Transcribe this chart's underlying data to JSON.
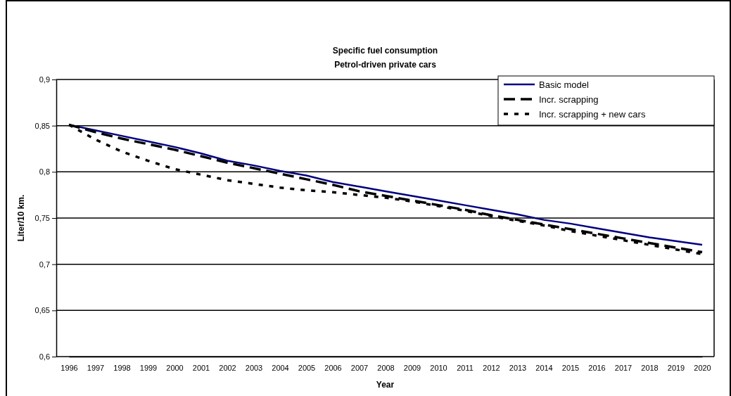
{
  "chart_data": {
    "type": "line",
    "title": "Specific fuel consumption",
    "subtitle": "Petrol-driven private cars",
    "xlabel": "Year",
    "ylabel": "Liter/10 km.",
    "categories": [
      "1996",
      "1997",
      "1998",
      "1999",
      "2000",
      "2001",
      "2002",
      "2003",
      "2004",
      "2005",
      "2006",
      "2007",
      "2008",
      "2009",
      "2010",
      "2011",
      "2012",
      "2013",
      "2014",
      "2015",
      "2016",
      "2017",
      "2018",
      "2019",
      "2020"
    ],
    "series": [
      {
        "name": "Basic model",
        "color": "#000080",
        "line_style": "solid",
        "values": [
          0.851,
          0.845,
          0.839,
          0.833,
          0.827,
          0.82,
          0.812,
          0.807,
          0.801,
          0.796,
          0.789,
          0.784,
          0.779,
          0.774,
          0.769,
          0.764,
          0.759,
          0.754,
          0.748,
          0.744,
          0.739,
          0.734,
          0.729,
          0.725,
          0.721
        ]
      },
      {
        "name": "Incr. scrapping",
        "color": "#000000",
        "line_style": "dashed",
        "values": [
          0.851,
          0.843,
          0.836,
          0.83,
          0.824,
          0.817,
          0.81,
          0.804,
          0.798,
          0.792,
          0.786,
          0.779,
          0.774,
          0.769,
          0.764,
          0.759,
          0.753,
          0.748,
          0.743,
          0.738,
          0.733,
          0.728,
          0.723,
          0.718,
          0.713
        ]
      },
      {
        "name": "Incr. scrapping + new cars",
        "color": "#000000",
        "line_style": "dotted",
        "values": [
          0.851,
          0.835,
          0.822,
          0.812,
          0.803,
          0.797,
          0.791,
          0.787,
          0.783,
          0.78,
          0.778,
          0.775,
          0.772,
          0.768,
          0.763,
          0.758,
          0.752,
          0.747,
          0.742,
          0.736,
          0.731,
          0.726,
          0.721,
          0.716,
          0.711
        ]
      }
    ],
    "ylim": [
      0.6,
      0.9
    ],
    "yticks": [
      {
        "value": 0.6,
        "label": "0,6"
      },
      {
        "value": 0.65,
        "label": "0,65"
      },
      {
        "value": 0.7,
        "label": "0,7"
      },
      {
        "value": 0.75,
        "label": "0,75"
      },
      {
        "value": 0.8,
        "label": "0,8"
      },
      {
        "value": 0.85,
        "label": "0,85"
      },
      {
        "value": 0.9,
        "label": "0,9"
      }
    ],
    "grid": "y",
    "legend": "top right"
  }
}
